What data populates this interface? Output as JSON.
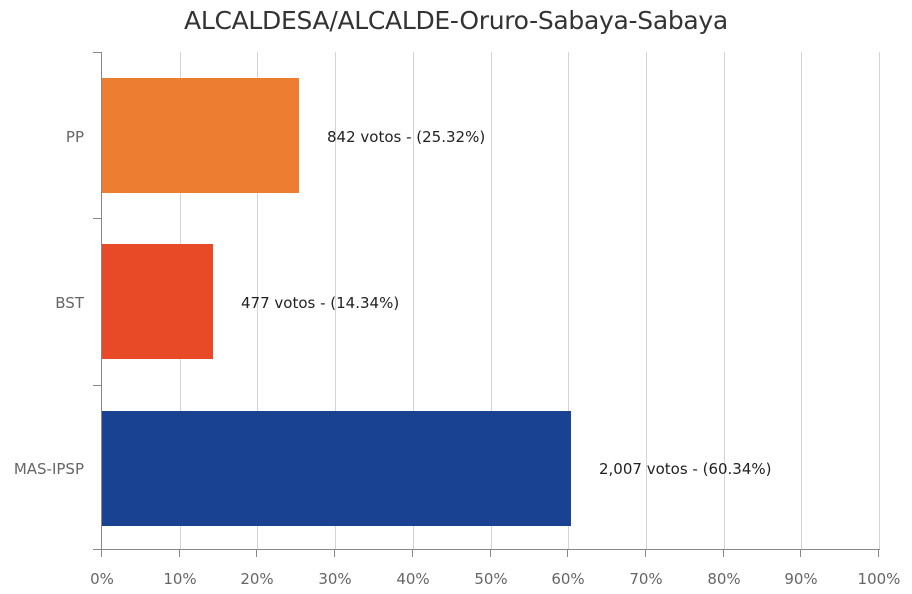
{
  "chart_data": {
    "type": "bar",
    "orientation": "horizontal",
    "title": "ALCALDESA/ALCALDE-Oruro-Sabaya-Sabaya",
    "xlabel": "",
    "ylabel": "",
    "xlim": [
      0,
      100
    ],
    "grid": true,
    "legend": null,
    "categories": [
      "PP",
      "BST",
      "MAS-IPSP"
    ],
    "votes": [
      842,
      477,
      2007
    ],
    "values": [
      25.32,
      14.34,
      60.34
    ],
    "colors": [
      "#ED7D31",
      "#E84A27",
      "#1A4292"
    ],
    "data_labels": [
      "842 votos - (25.32%)",
      "477 votos - (14.34%)",
      "2,007 votos - (60.34%)"
    ],
    "x_ticks": [
      "0%",
      "10%",
      "20%",
      "30%",
      "40%",
      "50%",
      "60%",
      "70%",
      "80%",
      "90%",
      "100%"
    ]
  }
}
